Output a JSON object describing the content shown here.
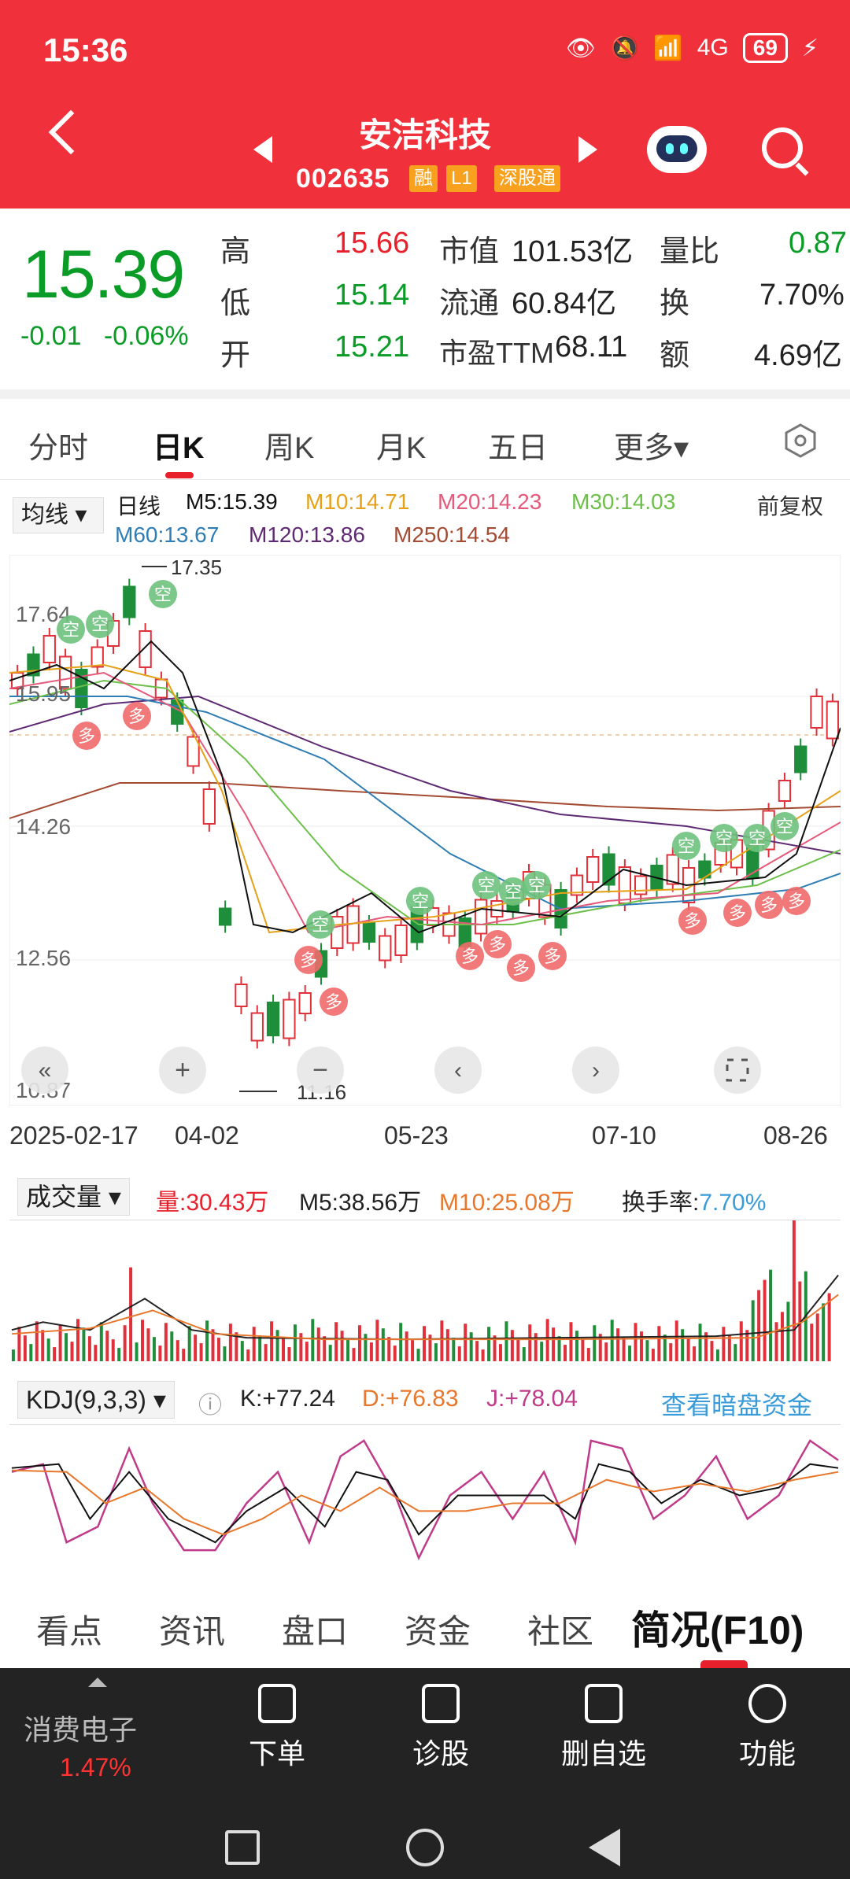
{
  "status": {
    "time": "15:36",
    "battery": "69",
    "signal": "4G"
  },
  "header": {
    "name": "安洁科技",
    "code": "002635",
    "tags": [
      "融",
      "L1",
      "深股通"
    ]
  },
  "quote": {
    "price": "15.39",
    "change": "-0.01",
    "pct": "-0.06%",
    "high_label": "高",
    "high": "15.66",
    "low_label": "低",
    "low": "15.14",
    "open_label": "开",
    "open": "15.21",
    "mcap_label": "市值",
    "mcap": "101.53亿",
    "float_label": "流通",
    "float": "60.84亿",
    "pe_label": "市盈TTM",
    "pe": "68.11",
    "vr_label": "量比",
    "vr": "0.87",
    "turn_label": "换",
    "turn": "7.70%",
    "amt_label": "额",
    "amt": "4.69亿"
  },
  "tabs": [
    "分时",
    "日K",
    "周K",
    "月K",
    "五日",
    "更多▾"
  ],
  "ma": {
    "select": "均线",
    "daily": "日线",
    "m5": "M5:15.39",
    "m10": "M10:14.71",
    "m20": "M20:14.23",
    "m30": "M30:14.03",
    "m60": "M60:13.67",
    "m120": "M120:13.86",
    "m250": "M250:14.54",
    "fq": "前复权"
  },
  "chart_data": {
    "type": "candlestick",
    "y_ticks": [
      "17.64",
      "15.95",
      "14.26",
      "12.56",
      "10.87"
    ],
    "high_mark": "17.35",
    "low_mark": "11.16",
    "x_labels": [
      "2025-02-17",
      "04-02",
      "05-23",
      "07-10",
      "08-26"
    ]
  },
  "volume": {
    "title": "成交量",
    "vol": "量:30.43万",
    "m5": "M5:38.56万",
    "m10": "M10:25.08万",
    "turn_label": "换手率:",
    "turn": "7.70%"
  },
  "kdj": {
    "title": "KDJ(9,3,3)",
    "k": "K:+77.24",
    "d": "D:+76.83",
    "j": "J:+78.04",
    "link": "查看暗盘资金"
  },
  "bottom_tabs": [
    "看点",
    "资讯",
    "盘口",
    "资金",
    "社区",
    "简况(F10)"
  ],
  "bar": {
    "sector": "消费电子",
    "sector_pct": "1.47%",
    "items": [
      "下单",
      "诊股",
      "删自选",
      "功能"
    ]
  }
}
